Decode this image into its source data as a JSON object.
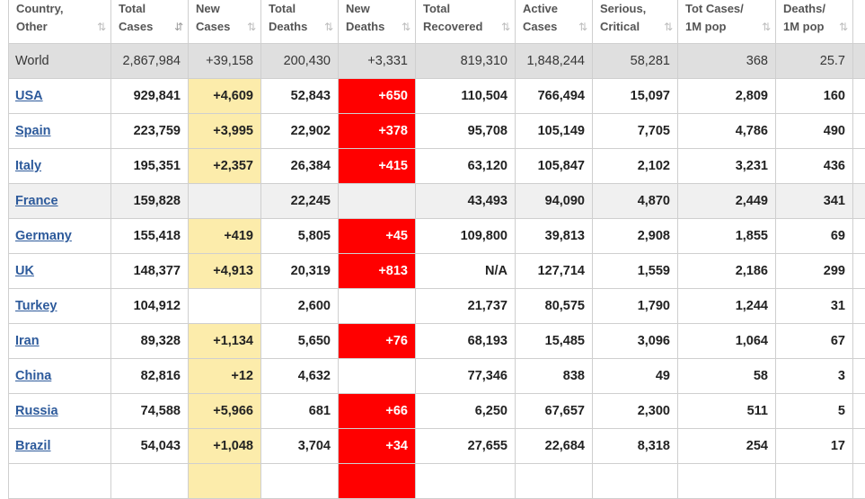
{
  "headers": [
    {
      "line1": "Country,",
      "line2": "Other",
      "sort": "⇅",
      "sorted": false
    },
    {
      "line1": "Total",
      "line2": "Cases",
      "sort": "⇵",
      "sorted": true
    },
    {
      "line1": "New",
      "line2": "Cases",
      "sort": "⇅",
      "sorted": false
    },
    {
      "line1": "Total",
      "line2": "Deaths",
      "sort": "⇅",
      "sorted": false
    },
    {
      "line1": "New",
      "line2": "Deaths",
      "sort": "⇅",
      "sorted": false
    },
    {
      "line1": "Total",
      "line2": "Recovered",
      "sort": "⇅",
      "sorted": false
    },
    {
      "line1": "Active",
      "line2": "Cases",
      "sort": "⇅",
      "sorted": false
    },
    {
      "line1": "Serious,",
      "line2": "Critical",
      "sort": "⇅",
      "sorted": false
    },
    {
      "line1": "Tot Cases/",
      "line2": "1M pop",
      "sort": "⇅",
      "sorted": false
    },
    {
      "line1": "Deaths/",
      "line2": "1M pop",
      "sort": "⇅",
      "sorted": false
    }
  ],
  "world": {
    "country": "World",
    "total_cases": "2,867,984",
    "new_cases": "+39,158",
    "total_deaths": "200,430",
    "new_deaths": "+3,331",
    "total_recovered": "819,310",
    "active_cases": "1,848,244",
    "serious_critical": "58,281",
    "cases_per_1m": "368",
    "deaths_per_1m": "25.7"
  },
  "rows": [
    {
      "country": "USA",
      "total_cases": "929,841",
      "new_cases": "+4,609",
      "total_deaths": "52,843",
      "new_deaths": "+650",
      "total_recovered": "110,504",
      "active_cases": "766,494",
      "serious_critical": "15,097",
      "cases_per_1m": "2,809",
      "deaths_per_1m": "160",
      "shaded": false
    },
    {
      "country": "Spain",
      "total_cases": "223,759",
      "new_cases": "+3,995",
      "total_deaths": "22,902",
      "new_deaths": "+378",
      "total_recovered": "95,708",
      "active_cases": "105,149",
      "serious_critical": "7,705",
      "cases_per_1m": "4,786",
      "deaths_per_1m": "490",
      "shaded": false
    },
    {
      "country": "Italy",
      "total_cases": "195,351",
      "new_cases": "+2,357",
      "total_deaths": "26,384",
      "new_deaths": "+415",
      "total_recovered": "63,120",
      "active_cases": "105,847",
      "serious_critical": "2,102",
      "cases_per_1m": "3,231",
      "deaths_per_1m": "436",
      "shaded": false
    },
    {
      "country": "France",
      "total_cases": "159,828",
      "new_cases": "",
      "total_deaths": "22,245",
      "new_deaths": "",
      "total_recovered": "43,493",
      "active_cases": "94,090",
      "serious_critical": "4,870",
      "cases_per_1m": "2,449",
      "deaths_per_1m": "341",
      "shaded": true
    },
    {
      "country": "Germany",
      "total_cases": "155,418",
      "new_cases": "+419",
      "total_deaths": "5,805",
      "new_deaths": "+45",
      "total_recovered": "109,800",
      "active_cases": "39,813",
      "serious_critical": "2,908",
      "cases_per_1m": "1,855",
      "deaths_per_1m": "69",
      "shaded": false
    },
    {
      "country": "UK",
      "total_cases": "148,377",
      "new_cases": "+4,913",
      "total_deaths": "20,319",
      "new_deaths": "+813",
      "total_recovered": "N/A",
      "active_cases": "127,714",
      "serious_critical": "1,559",
      "cases_per_1m": "2,186",
      "deaths_per_1m": "299",
      "shaded": false
    },
    {
      "country": "Turkey",
      "total_cases": "104,912",
      "new_cases": "",
      "total_deaths": "2,600",
      "new_deaths": "",
      "total_recovered": "21,737",
      "active_cases": "80,575",
      "serious_critical": "1,790",
      "cases_per_1m": "1,244",
      "deaths_per_1m": "31",
      "shaded": false
    },
    {
      "country": "Iran",
      "total_cases": "89,328",
      "new_cases": "+1,134",
      "total_deaths": "5,650",
      "new_deaths": "+76",
      "total_recovered": "68,193",
      "active_cases": "15,485",
      "serious_critical": "3,096",
      "cases_per_1m": "1,064",
      "deaths_per_1m": "67",
      "shaded": false
    },
    {
      "country": "China",
      "total_cases": "82,816",
      "new_cases": "+12",
      "total_deaths": "4,632",
      "new_deaths": "",
      "total_recovered": "77,346",
      "active_cases": "838",
      "serious_critical": "49",
      "cases_per_1m": "58",
      "deaths_per_1m": "3",
      "shaded": false
    },
    {
      "country": "Russia",
      "total_cases": "74,588",
      "new_cases": "+5,966",
      "total_deaths": "681",
      "new_deaths": "+66",
      "total_recovered": "6,250",
      "active_cases": "67,657",
      "serious_critical": "2,300",
      "cases_per_1m": "511",
      "deaths_per_1m": "5",
      "shaded": false
    },
    {
      "country": "Brazil",
      "total_cases": "54,043",
      "new_cases": "+1,048",
      "total_deaths": "3,704",
      "new_deaths": "+34",
      "total_recovered": "27,655",
      "active_cases": "22,684",
      "serious_critical": "8,318",
      "cases_per_1m": "254",
      "deaths_per_1m": "17",
      "shaded": false
    }
  ],
  "colors": {
    "new_cases_highlight": "#fcecab",
    "new_deaths_highlight": "#ff0000",
    "world_row_bg": "#dfdfdf",
    "country_link": "#2d5a9b"
  }
}
